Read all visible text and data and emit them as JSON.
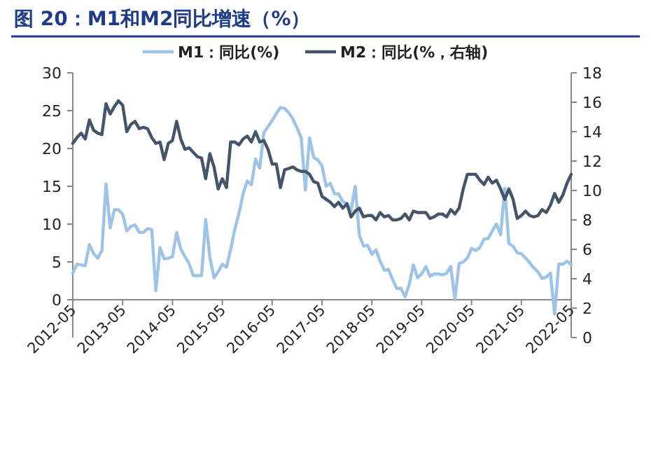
{
  "chart_data": {
    "type": "line",
    "title": "图 20：M1和M2同比增速（%）",
    "legend": "top",
    "grid": false,
    "x": [
      "2012-05",
      "2012-06",
      "2012-07",
      "2012-08",
      "2012-09",
      "2012-10",
      "2012-11",
      "2012-12",
      "2013-01",
      "2013-02",
      "2013-03",
      "2013-04",
      "2013-05",
      "2013-06",
      "2013-07",
      "2013-08",
      "2013-09",
      "2013-10",
      "2013-11",
      "2013-12",
      "2014-01",
      "2014-02",
      "2014-03",
      "2014-04",
      "2014-05",
      "2014-06",
      "2014-07",
      "2014-08",
      "2014-09",
      "2014-10",
      "2014-11",
      "2014-12",
      "2015-01",
      "2015-02",
      "2015-03",
      "2015-04",
      "2015-05",
      "2015-06",
      "2015-07",
      "2015-08",
      "2015-09",
      "2015-10",
      "2015-11",
      "2015-12",
      "2016-01",
      "2016-02",
      "2016-03",
      "2016-04",
      "2016-05",
      "2016-06",
      "2016-07",
      "2016-08",
      "2016-09",
      "2016-10",
      "2016-11",
      "2016-12",
      "2017-01",
      "2017-02",
      "2017-03",
      "2017-04",
      "2017-05",
      "2017-06",
      "2017-07",
      "2017-08",
      "2017-09",
      "2017-10",
      "2017-11",
      "2017-12",
      "2018-01",
      "2018-02",
      "2018-03",
      "2018-04",
      "2018-05",
      "2018-06",
      "2018-07",
      "2018-08",
      "2018-09",
      "2018-10",
      "2018-11",
      "2018-12",
      "2019-01",
      "2019-02",
      "2019-03",
      "2019-04",
      "2019-05",
      "2019-06",
      "2019-07",
      "2019-08",
      "2019-09",
      "2019-10",
      "2019-11",
      "2019-12",
      "2020-01",
      "2020-02",
      "2020-03",
      "2020-04",
      "2020-05",
      "2020-06",
      "2020-07",
      "2020-08",
      "2020-09",
      "2020-10",
      "2020-11",
      "2020-12",
      "2021-01",
      "2021-02",
      "2021-03",
      "2021-04",
      "2021-05",
      "2021-06",
      "2021-07",
      "2021-08",
      "2021-09",
      "2021-10",
      "2021-11",
      "2021-12",
      "2022-01",
      "2022-02",
      "2022-03",
      "2022-04",
      "2022-05"
    ],
    "series": [
      {
        "name": "M1：同比(%)",
        "color": "#9dc3e6",
        "values": [
          3.5,
          4.7,
          4.6,
          4.5,
          7.3,
          6.1,
          5.5,
          6.5,
          15.3,
          9.5,
          11.9,
          11.9,
          11.3,
          9.1,
          9.7,
          9.9,
          8.9,
          8.9,
          9.4,
          9.3,
          1.2,
          6.9,
          5.4,
          5.5,
          5.7,
          8.9,
          6.7,
          5.7,
          4.8,
          3.2,
          3.2,
          3.2,
          10.6,
          5.6,
          2.9,
          3.7,
          4.7,
          4.3,
          6.6,
          9.3,
          11.4,
          14.0,
          15.7,
          15.2,
          18.6,
          17.4,
          22.1,
          22.9,
          23.7,
          24.6,
          25.4,
          25.3,
          24.7,
          23.9,
          22.7,
          21.4,
          14.5,
          21.4,
          18.8,
          18.5,
          17.7,
          15.0,
          15.4,
          14.0,
          14.0,
          13.0,
          12.7,
          11.8,
          15.0,
          8.5,
          7.1,
          7.2,
          6.0,
          6.6,
          5.1,
          3.9,
          4.0,
          2.7,
          1.5,
          1.5,
          0.4,
          2.0,
          4.6,
          2.9,
          3.4,
          4.4,
          3.1,
          3.4,
          3.4,
          3.3,
          3.5,
          4.4,
          0.0,
          4.8,
          5.0,
          5.5,
          6.8,
          6.5,
          6.9,
          8.0,
          8.1,
          9.1,
          10.0,
          8.6,
          14.7,
          7.4,
          7.1,
          6.2,
          6.1,
          5.5,
          4.9,
          4.2,
          3.7,
          2.8,
          3.0,
          3.5,
          -1.9,
          4.7,
          4.7,
          5.1,
          4.6
        ]
      },
      {
        "name": "M2：同比(%，右轴)",
        "color": "#44546a",
        "axis": "y2",
        "values": [
          13.2,
          13.6,
          13.9,
          13.5,
          14.8,
          14.1,
          13.9,
          13.8,
          15.9,
          15.2,
          15.7,
          16.1,
          15.8,
          14.0,
          14.5,
          14.7,
          14.2,
          14.3,
          14.2,
          13.6,
          13.2,
          13.3,
          12.1,
          13.2,
          13.4,
          14.7,
          13.5,
          12.8,
          12.9,
          12.6,
          12.3,
          12.2,
          10.8,
          12.5,
          11.6,
          10.1,
          10.8,
          10.2,
          13.3,
          13.3,
          13.1,
          13.5,
          13.7,
          13.3,
          14.0,
          13.3,
          13.4,
          12.8,
          11.8,
          11.8,
          10.2,
          11.4,
          11.5,
          11.6,
          11.4,
          11.3,
          11.3,
          11.1,
          10.6,
          10.5,
          9.6,
          9.4,
          9.2,
          8.9,
          9.2,
          8.8,
          9.1,
          8.2,
          8.6,
          8.8,
          8.2,
          8.3,
          8.3,
          8.0,
          8.5,
          8.2,
          8.3,
          8.0,
          8.0,
          8.1,
          8.4,
          8.0,
          8.6,
          8.5,
          8.5,
          8.5,
          8.1,
          8.2,
          8.4,
          8.4,
          8.2,
          8.7,
          8.4,
          8.8,
          10.1,
          11.1,
          11.1,
          11.1,
          10.7,
          10.4,
          10.9,
          10.5,
          10.7,
          10.1,
          9.4,
          10.1,
          9.4,
          8.1,
          8.3,
          8.6,
          8.3,
          8.2,
          8.3,
          8.7,
          8.5,
          9.0,
          9.8,
          9.2,
          9.7,
          10.5,
          11.1
        ]
      }
    ],
    "xlim": [
      "2012-05",
      "2022-05"
    ],
    "xticks": [
      "2012-05",
      "2013-05",
      "2014-05",
      "2015-05",
      "2016-05",
      "2017-05",
      "2018-05",
      "2019-05",
      "2020-05",
      "2021-05",
      "2022-05"
    ],
    "ylim": [
      -5,
      30
    ],
    "yticks": [
      0,
      5,
      10,
      15,
      20,
      25,
      30
    ],
    "y2lim": [
      0,
      18
    ],
    "y2ticks": [
      0,
      2,
      4,
      6,
      8,
      10,
      12,
      14,
      16,
      18
    ]
  }
}
